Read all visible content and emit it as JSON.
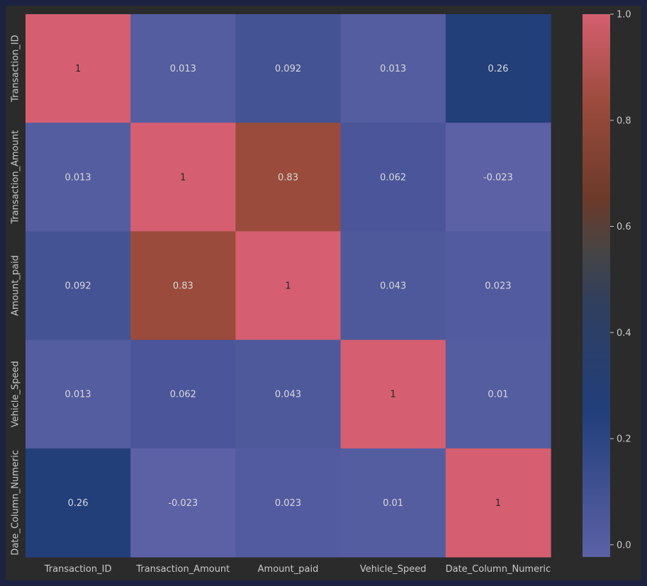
{
  "chart_data": {
    "type": "heatmap",
    "title": "",
    "xlabel": "",
    "ylabel": "",
    "x_labels": [
      "Transaction_ID",
      "Transaction_Amount",
      "Amount_paid",
      "Vehicle_Speed",
      "Date_Column_Numeric"
    ],
    "y_labels": [
      "Transaction_ID",
      "Transaction_Amount",
      "Amount_paid",
      "Vehicle_Speed",
      "Date_Column_Numeric"
    ],
    "values": [
      [
        1,
        0.013,
        0.092,
        0.013,
        0.26
      ],
      [
        0.013,
        1,
        0.83,
        0.062,
        -0.023
      ],
      [
        0.092,
        0.83,
        1,
        0.043,
        0.023
      ],
      [
        0.013,
        0.062,
        0.043,
        1,
        0.01
      ],
      [
        0.26,
        -0.023,
        0.023,
        0.01,
        1
      ]
    ],
    "annotations": [
      [
        "1",
        "0.013",
        "0.092",
        "0.013",
        "0.26"
      ],
      [
        "0.013",
        "1",
        "0.83",
        "0.062",
        "-0.023"
      ],
      [
        "0.092",
        "0.83",
        "1",
        "0.043",
        "0.023"
      ],
      [
        "0.013",
        "0.062",
        "0.043",
        "1",
        "0.01"
      ],
      [
        "0.26",
        "-0.023",
        "0.023",
        "0.01",
        "1"
      ]
    ],
    "colorbar": {
      "range": [
        -0.023,
        1.0
      ],
      "ticks": [
        0.0,
        0.2,
        0.4,
        0.6,
        0.8,
        1.0
      ],
      "tick_labels": [
        "0.0",
        "0.2",
        "0.4",
        "0.6",
        "0.8",
        "1.0"
      ]
    },
    "colormap_stops": [
      {
        "v": -0.023,
        "color": "#5c61a6"
      },
      {
        "v": 0.25,
        "color": "#223f7b"
      },
      {
        "v": 0.45,
        "color": "#2f3f5f"
      },
      {
        "v": 0.55,
        "color": "#454545"
      },
      {
        "v": 0.65,
        "color": "#6b3a2a"
      },
      {
        "v": 0.83,
        "color": "#9a4b3c"
      },
      {
        "v": 1.0,
        "color": "#d55f70"
      }
    ],
    "grid": false,
    "legend": "colorbar-right"
  }
}
